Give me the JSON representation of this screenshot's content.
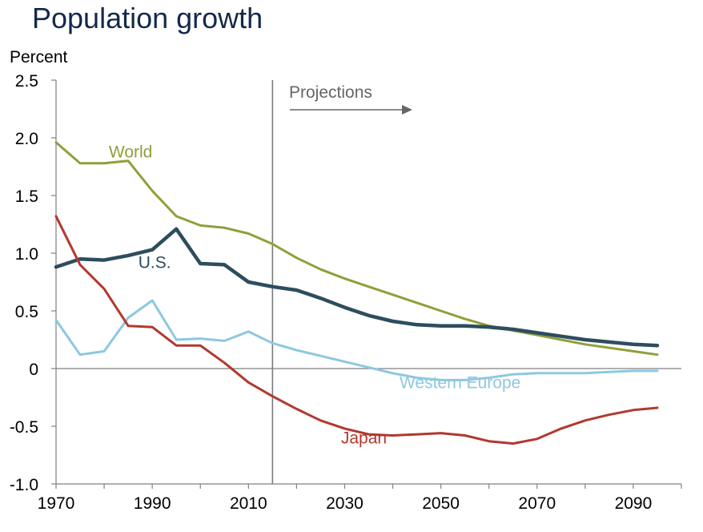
{
  "chart_data": {
    "type": "line",
    "title": "Population growth",
    "ylabel": "Percent",
    "xlabel": "",
    "xlim": [
      1970,
      2100
    ],
    "ylim": [
      -1.0,
      2.5
    ],
    "grid": false,
    "xticks": [
      1970,
      1990,
      2010,
      2030,
      2050,
      2070,
      2090
    ],
    "xtick_labels": [
      "1970",
      "1990",
      "2010",
      "2030",
      "2050",
      "2070",
      "2090"
    ],
    "yticks": [
      -1.0,
      -0.5,
      0,
      0.5,
      1.0,
      1.5,
      2.0,
      2.5
    ],
    "ytick_labels": [
      "-1.0",
      "-0.5",
      "0",
      "0.5",
      "1.0",
      "1.5",
      "2.0",
      "2.5"
    ],
    "projection_start": 2015,
    "annotations": [
      {
        "text": "Projections",
        "color": "#666666"
      }
    ],
    "series": [
      {
        "name": "World",
        "color": "#8fa03a",
        "label_x": 1985.5,
        "label_y": 1.88,
        "x": [
          1970,
          1975,
          1980,
          1985,
          1990,
          1995,
          2000,
          2005,
          2010,
          2015,
          2020,
          2025,
          2030,
          2035,
          2040,
          2045,
          2050,
          2055,
          2060,
          2065,
          2070,
          2075,
          2080,
          2085,
          2090,
          2095
        ],
        "y": [
          1.96,
          1.78,
          1.78,
          1.8,
          1.54,
          1.32,
          1.24,
          1.22,
          1.17,
          1.08,
          0.96,
          0.86,
          0.78,
          0.71,
          0.64,
          0.57,
          0.5,
          0.43,
          0.37,
          0.33,
          0.29,
          0.25,
          0.21,
          0.18,
          0.15,
          0.12
        ]
      },
      {
        "name": "U.S.",
        "color": "#2d4d5e",
        "label_x": 1990.5,
        "label_y": 0.92,
        "x": [
          1970,
          1975,
          1980,
          1985,
          1990,
          1995,
          2000,
          2005,
          2010,
          2015,
          2020,
          2025,
          2030,
          2035,
          2040,
          2045,
          2050,
          2055,
          2060,
          2065,
          2070,
          2075,
          2080,
          2085,
          2090,
          2095
        ],
        "y": [
          0.88,
          0.95,
          0.94,
          0.98,
          1.03,
          1.21,
          0.91,
          0.9,
          0.75,
          0.71,
          0.68,
          0.61,
          0.53,
          0.46,
          0.41,
          0.38,
          0.37,
          0.37,
          0.36,
          0.34,
          0.31,
          0.28,
          0.25,
          0.23,
          0.21,
          0.2
        ]
      },
      {
        "name": "Western Europe",
        "color": "#8dc8e0",
        "label_x": 2054,
        "label_y": -0.12,
        "x": [
          1970,
          1975,
          1980,
          1985,
          1990,
          1995,
          2000,
          2005,
          2010,
          2015,
          2020,
          2025,
          2030,
          2035,
          2040,
          2045,
          2050,
          2055,
          2060,
          2065,
          2070,
          2075,
          2080,
          2085,
          2090,
          2095
        ],
        "y": [
          0.42,
          0.12,
          0.15,
          0.44,
          0.59,
          0.25,
          0.26,
          0.24,
          0.32,
          0.22,
          0.16,
          0.11,
          0.06,
          0.01,
          -0.04,
          -0.08,
          -0.1,
          -0.1,
          -0.08,
          -0.05,
          -0.04,
          -0.04,
          -0.04,
          -0.03,
          -0.02,
          -0.02
        ]
      },
      {
        "name": "Japan",
        "color": "#b2382f",
        "label_x": 2034,
        "label_y": -0.6,
        "x": [
          1970,
          1975,
          1980,
          1985,
          1990,
          1995,
          2000,
          2005,
          2010,
          2015,
          2020,
          2025,
          2030,
          2035,
          2040,
          2045,
          2050,
          2055,
          2060,
          2065,
          2070,
          2075,
          2080,
          2085,
          2090,
          2095
        ],
        "y": [
          1.32,
          0.9,
          0.69,
          0.37,
          0.36,
          0.2,
          0.2,
          0.05,
          -0.12,
          -0.24,
          -0.35,
          -0.45,
          -0.52,
          -0.57,
          -0.58,
          -0.57,
          -0.56,
          -0.58,
          -0.63,
          -0.65,
          -0.61,
          -0.52,
          -0.45,
          -0.4,
          -0.36,
          -0.34
        ]
      }
    ]
  }
}
